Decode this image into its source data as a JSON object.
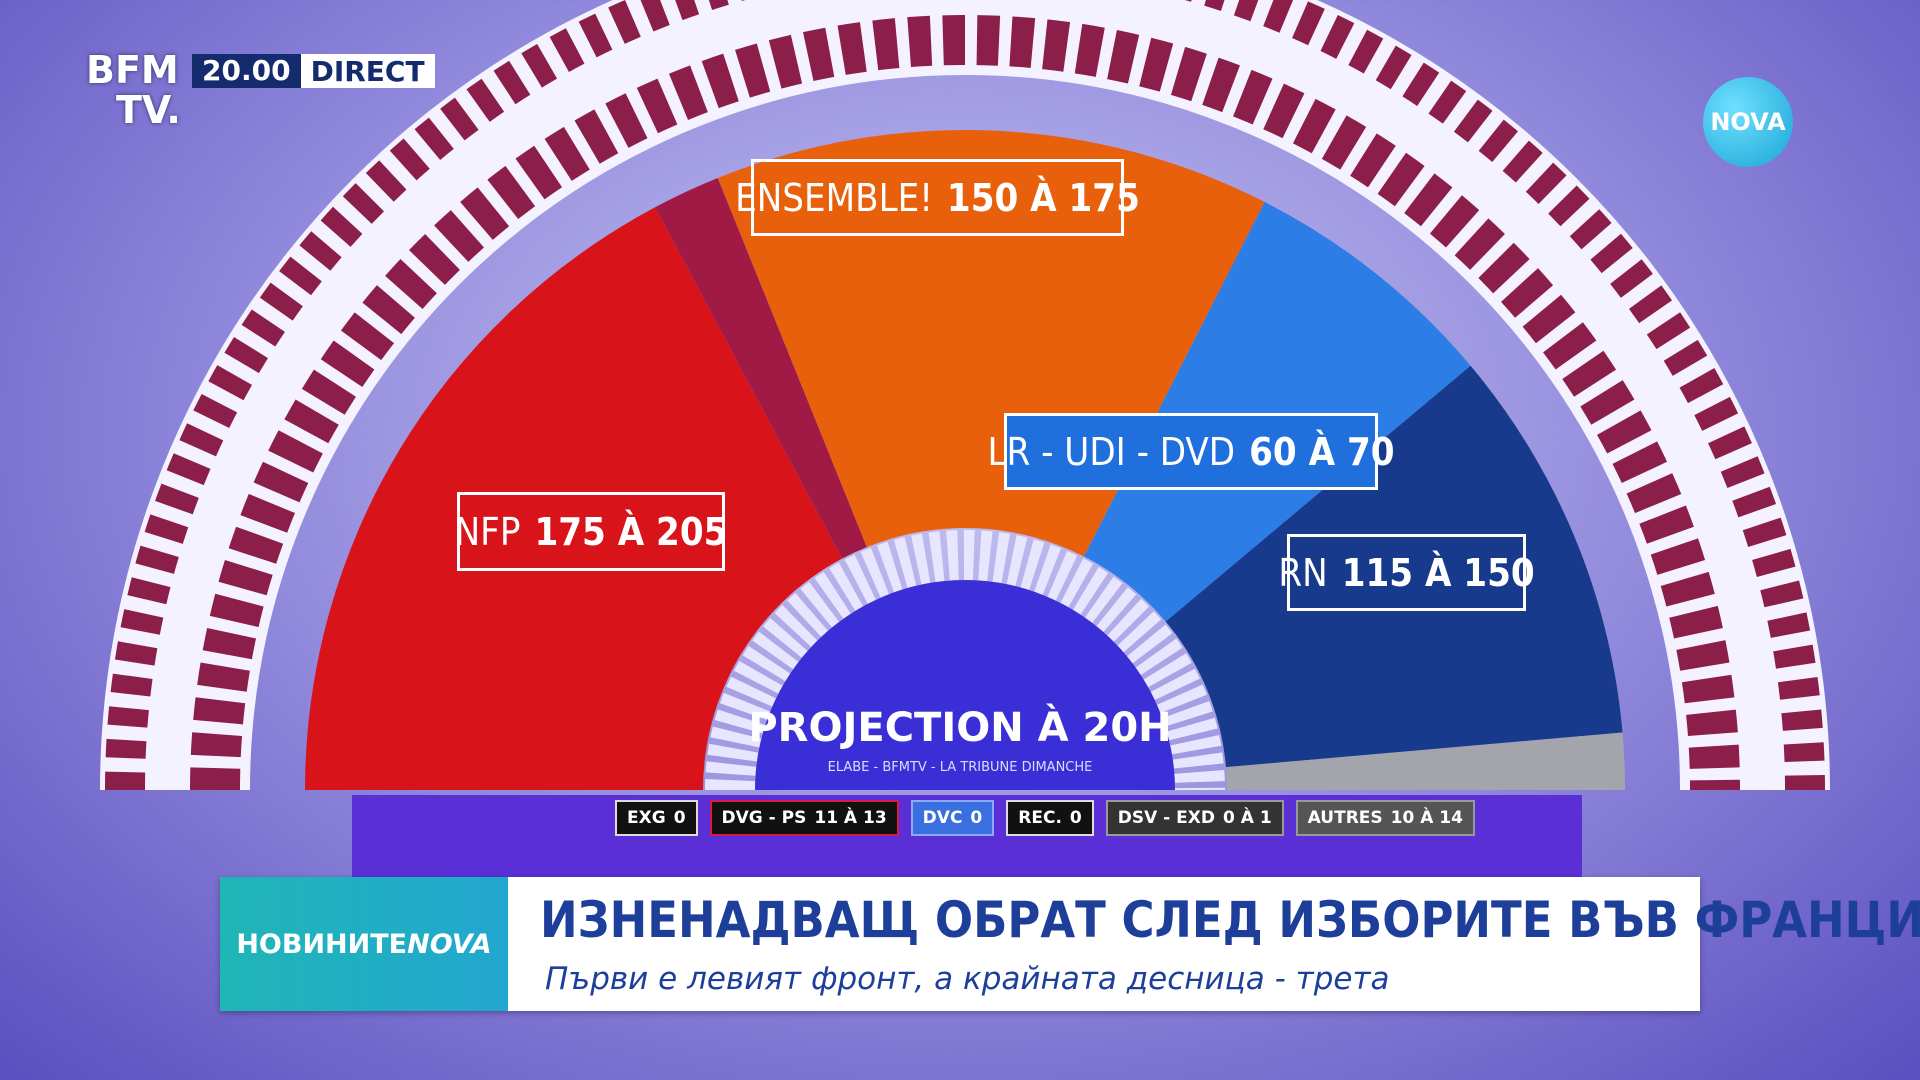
{
  "broadcaster": {
    "logo_line1": "BFM",
    "logo_line2": "TV.",
    "time": "20.00",
    "live": "DIRECT"
  },
  "corner_logo": "NOVA",
  "hemicycle": {
    "parties": [
      {
        "name": "NFP",
        "range": "175 À 205"
      },
      {
        "name": "ENSEMBLE!",
        "range": "150 À 175"
      },
      {
        "name": "LR - UDI - DVD",
        "range": "60 À 70"
      },
      {
        "name": "RN",
        "range": "115 À 150"
      }
    ],
    "title": "PROJECTION À 20H",
    "source": "ELABE - BFMTV - LA TRIBUNE DIMANCHE",
    "others": [
      {
        "name": "EXG",
        "range": "0"
      },
      {
        "name": "DVG - PS",
        "range": "11 À 13"
      },
      {
        "name": "DVC",
        "range": "0"
      },
      {
        "name": "REC.",
        "range": "0"
      },
      {
        "name": "DSV - EXD",
        "range": "0 À 1"
      },
      {
        "name": "AUTRES",
        "range": "10 À 14"
      }
    ]
  },
  "lower_third": {
    "brand": "НОВИНИТЕ",
    "brand_logo": "NOVA",
    "headline": "ИЗНЕНАДВАЩ ОБРАТ СЛЕД ИЗБОРИТЕ ВЪВ ФРАНЦИЯ",
    "subheadline": "Първи е левият фронт, а крайната десница - трета"
  }
}
